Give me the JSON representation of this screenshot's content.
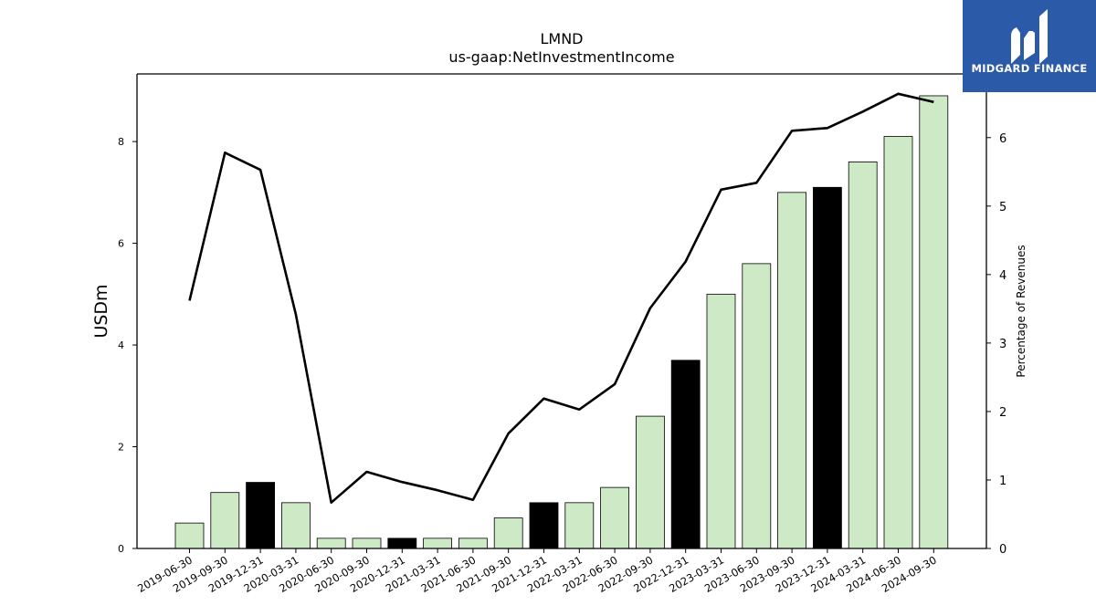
{
  "chart_data": {
    "type": "bar",
    "title": "LMND",
    "subtitle": "us-gaap:NetInvestmentIncome",
    "ylabel": "USDm",
    "y2label": "Percentage of Revenues",
    "categories": [
      "2019-06-30",
      "2019-09-30",
      "2019-12-31",
      "2020-03-31",
      "2020-06-30",
      "2020-09-30",
      "2020-12-31",
      "2021-03-31",
      "2021-06-30",
      "2021-09-30",
      "2021-12-31",
      "2022-03-31",
      "2022-06-30",
      "2022-09-30",
      "2022-12-31",
      "2023-03-31",
      "2023-06-30",
      "2023-09-30",
      "2023-12-31",
      "2024-03-31",
      "2024-06-30",
      "2024-09-30"
    ],
    "series": [
      {
        "type": "bar",
        "axis": "left",
        "values": [
          0.5,
          1.1,
          1.3,
          0.9,
          0.2,
          0.2,
          0.2,
          0.2,
          0.2,
          0.6,
          0.9,
          0.9,
          1.2,
          2.6,
          3.7,
          5.0,
          5.6,
          7.0,
          7.1,
          7.6,
          8.1,
          8.9
        ],
        "color": "#cde9c6",
        "highlight_color": "#000000",
        "highlight_categories": [
          "2019-12-31",
          "2020-12-31",
          "2021-12-31",
          "2022-12-31",
          "2023-12-31"
        ]
      },
      {
        "type": "line",
        "axis": "right",
        "values": [
          3.62,
          5.78,
          5.53,
          3.42,
          0.67,
          1.12,
          0.97,
          0.85,
          0.71,
          1.68,
          2.19,
          2.03,
          2.4,
          3.51,
          4.19,
          5.24,
          5.34,
          6.1,
          6.14,
          6.38,
          6.64,
          6.52
        ],
        "color": "#000000"
      }
    ],
    "ylim": [
      0,
      9.33
    ],
    "y2lim": [
      0,
      6.93
    ],
    "yticks": [
      0,
      2,
      4,
      6,
      8
    ],
    "y2ticks": [
      0,
      1,
      2,
      3,
      4,
      5,
      6
    ],
    "grid": false,
    "legend": "none"
  },
  "logo": {
    "name": "MIDGARD FINANCE"
  }
}
